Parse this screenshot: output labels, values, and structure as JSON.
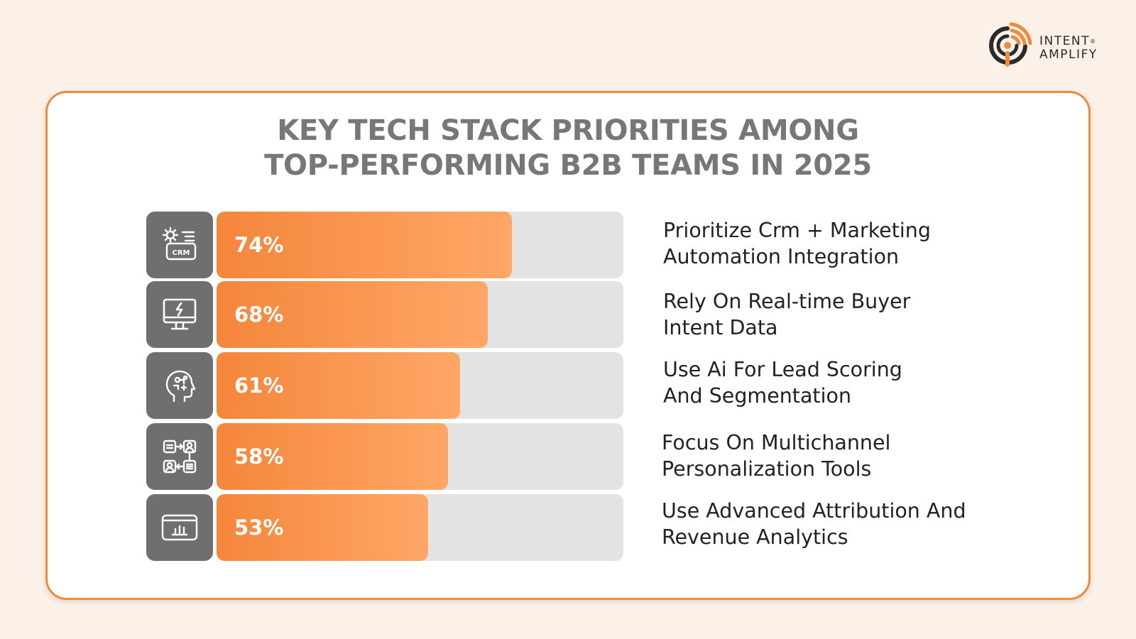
{
  "brand": {
    "line1": "INTENT",
    "reg": "®",
    "line2": "AMPLIFY",
    "accent": "#f08a3c"
  },
  "title": {
    "line1": "KEY TECH STACK PRIORITIES AMONG",
    "line2": "TOP-PERFORMING B2B TEAMS IN 2025"
  },
  "colors": {
    "bar_fill": "#f4863b",
    "track": "#e3e3e3",
    "icon_bg": "#6f6f6f",
    "title": "#777777"
  },
  "chart_data": {
    "type": "bar",
    "orientation": "horizontal",
    "title": "KEY TECH STACK PRIORITIES AMONG TOP-PERFORMING B2B TEAMS IN 2025",
    "xlim": [
      0,
      100
    ],
    "unit": "%",
    "items": [
      {
        "value": 74,
        "label": "74%",
        "icon": "crm-gear-icon",
        "desc1": "Prioritize Crm + Marketing",
        "desc2": "Automation Integration"
      },
      {
        "value": 68,
        "label": "68%",
        "icon": "monitor-lightning-icon",
        "desc1": "Rely On Real-time Buyer",
        "desc2": "Intent Data"
      },
      {
        "value": 61,
        "label": "61%",
        "icon": "ai-head-icon",
        "desc1": "Use Ai For Lead Scoring",
        "desc2": "And Segmentation"
      },
      {
        "value": 58,
        "label": "58%",
        "icon": "multichannel-icon",
        "desc1": "Focus On Multichannel",
        "desc2": "Personalization Tools"
      },
      {
        "value": 53,
        "label": "53%",
        "icon": "analytics-window-icon",
        "desc1": "Use Advanced Attribution And",
        "desc2": "Revenue Analytics"
      }
    ]
  }
}
